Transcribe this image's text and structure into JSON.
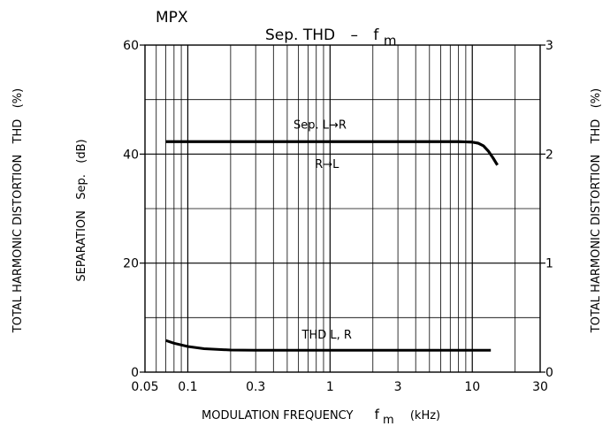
{
  "chart_data": {
    "type": "line",
    "header_label": "MPX",
    "title": "Sep. THD",
    "title_dash": "–",
    "title_var": "f",
    "title_var_sub": "m",
    "xlabel": "MODULATION FREQUENCY",
    "xlabel_var": "f",
    "xlabel_var_sub": "m",
    "xlabel_unit": "(kHz)",
    "ylabel_left": "SEPARATION   Sep.   (dB)",
    "ylabel_right": "TOTAL HARMONIC DISTORTION   THD   (%)",
    "ylabel_far_left": "TOTAL HARMONIC DISTORTION   THD   (%)",
    "x_scale": "log",
    "xlim": [
      0.05,
      30
    ],
    "x_ticks": [
      {
        "value": 0.05,
        "label": "0.05"
      },
      {
        "value": 0.1,
        "label": "0.1"
      },
      {
        "value": 0.3,
        "label": "0.3"
      },
      {
        "value": 1,
        "label": "1"
      },
      {
        "value": 3,
        "label": "3"
      },
      {
        "value": 10,
        "label": "10"
      },
      {
        "value": 30,
        "label": "30"
      }
    ],
    "ylim_left": [
      0,
      60
    ],
    "y_ticks_left": [
      {
        "value": 0,
        "label": "0"
      },
      {
        "value": 20,
        "label": "20"
      },
      {
        "value": 40,
        "label": "40"
      },
      {
        "value": 60,
        "label": "60"
      }
    ],
    "ylim_right": [
      0,
      3
    ],
    "y_ticks_right": [
      {
        "value": 0,
        "label": "0"
      },
      {
        "value": 1,
        "label": "1"
      },
      {
        "value": 2,
        "label": "2"
      },
      {
        "value": 3,
        "label": "3"
      }
    ],
    "grid": true,
    "series": [
      {
        "name": "Sep. L→R",
        "axis": "left",
        "points": [
          [
            0.07,
            42.3
          ],
          [
            0.1,
            42.3
          ],
          [
            0.3,
            42.3
          ],
          [
            1,
            42.3
          ],
          [
            3,
            42.3
          ],
          [
            8,
            42.3
          ],
          [
            10,
            42.2
          ],
          [
            11,
            42.0
          ],
          [
            12,
            41.5
          ],
          [
            13,
            40.5
          ],
          [
            14,
            39.3
          ],
          [
            15,
            38.0
          ]
        ]
      },
      {
        "name": "R→L",
        "axis": "left",
        "points": [
          [
            0.07,
            42.3
          ],
          [
            0.1,
            42.3
          ],
          [
            0.3,
            42.3
          ],
          [
            1,
            42.3
          ],
          [
            3,
            42.3
          ],
          [
            8,
            42.3
          ],
          [
            10,
            42.2
          ],
          [
            11,
            42.0
          ],
          [
            12,
            41.5
          ],
          [
            13,
            40.5
          ],
          [
            14,
            39.3
          ],
          [
            15,
            38.0
          ]
        ]
      },
      {
        "name": "THD L, R",
        "axis": "right",
        "points": [
          [
            0.07,
            0.29
          ],
          [
            0.08,
            0.265
          ],
          [
            0.1,
            0.235
          ],
          [
            0.13,
            0.215
          ],
          [
            0.2,
            0.203
          ],
          [
            0.3,
            0.2
          ],
          [
            1,
            0.2
          ],
          [
            3,
            0.2
          ],
          [
            10,
            0.2
          ],
          [
            13.5,
            0.2
          ]
        ]
      }
    ],
    "annotations": [
      {
        "text": "Sep. L→R",
        "x": 0.85,
        "y": 44.7
      },
      {
        "text": "R→L",
        "x": 0.95,
        "y": 37.5
      },
      {
        "text": "THD L, R",
        "x": 0.95,
        "y": 6.2
      }
    ]
  }
}
